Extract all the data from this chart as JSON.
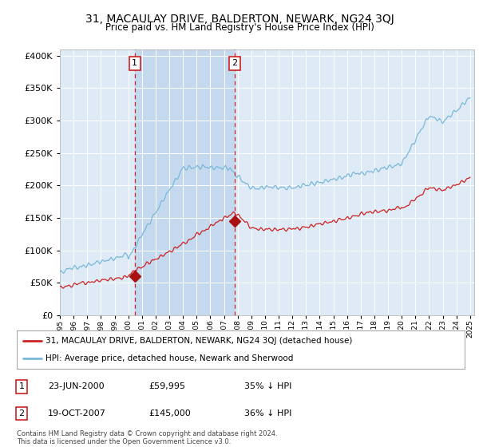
{
  "title": "31, MACAULAY DRIVE, BALDERTON, NEWARK, NG24 3QJ",
  "subtitle": "Price paid vs. HM Land Registry's House Price Index (HPI)",
  "ylabel_ticks": [
    "£0",
    "£50K",
    "£100K",
    "£150K",
    "£200K",
    "£250K",
    "£300K",
    "£350K",
    "£400K"
  ],
  "ytick_values": [
    0,
    50000,
    100000,
    150000,
    200000,
    250000,
    300000,
    350000,
    400000
  ],
  "ylim": [
    0,
    410000
  ],
  "sale1_date": "23-JUN-2000",
  "sale1_price": 59995,
  "sale2_date": "19-OCT-2007",
  "sale2_price": 145000,
  "sale1_pct": "35% ↓ HPI",
  "sale2_pct": "36% ↓ HPI",
  "hpi_color": "#7ab8d9",
  "price_color": "#cc2222",
  "vline_color": "#cc2222",
  "background_color": "#deeaf5",
  "highlight_color": "#c5d9ee",
  "legend_label_price": "31, MACAULAY DRIVE, BALDERTON, NEWARK, NG24 3QJ (detached house)",
  "legend_label_hpi": "HPI: Average price, detached house, Newark and Sherwood",
  "footer": "Contains HM Land Registry data © Crown copyright and database right 2024.\nThis data is licensed under the Open Government Licence v3.0.",
  "sale1_x": 2000.47,
  "sale2_x": 2007.79,
  "marker_color": "#aa1111"
}
